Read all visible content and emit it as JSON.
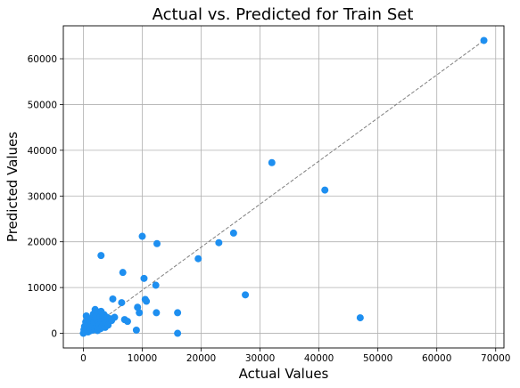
{
  "chart_data": {
    "type": "scatter",
    "title": "Actual vs. Predicted for Train Set",
    "xlabel": "Actual Values",
    "ylabel": "Predicted Values",
    "xlim": [
      -3400,
      71400
    ],
    "ylim": [
      -3200,
      67200
    ],
    "xticks": [
      0,
      10000,
      20000,
      30000,
      40000,
      50000,
      60000,
      70000
    ],
    "yticks": [
      0,
      10000,
      20000,
      30000,
      40000,
      50000,
      60000
    ],
    "grid": true,
    "colors": {
      "points": "#1e8ff0",
      "reference_line": "#808080"
    },
    "reference_line": {
      "style": "dashed",
      "from": [
        0,
        0
      ],
      "to": [
        68000,
        64000
      ]
    },
    "series": [
      {
        "values": [
          [
            0,
            0
          ],
          [
            100,
            800
          ],
          [
            200,
            1500
          ],
          [
            300,
            400
          ],
          [
            400,
            2500
          ],
          [
            500,
            3800
          ],
          [
            600,
            1200
          ],
          [
            700,
            2000
          ],
          [
            800,
            300
          ],
          [
            900,
            3000
          ],
          [
            1000,
            1600
          ],
          [
            1100,
            500
          ],
          [
            1200,
            2600
          ],
          [
            1300,
            900
          ],
          [
            1400,
            3300
          ],
          [
            1500,
            1900
          ],
          [
            1600,
            700
          ],
          [
            1700,
            4200
          ],
          [
            1800,
            2400
          ],
          [
            1900,
            1100
          ],
          [
            2000,
            5200
          ],
          [
            2100,
            3700
          ],
          [
            2200,
            1400
          ],
          [
            2300,
            2900
          ],
          [
            2400,
            600
          ],
          [
            2500,
            4500
          ],
          [
            2600,
            2200
          ],
          [
            2700,
            1800
          ],
          [
            2800,
            3500
          ],
          [
            2900,
            1000
          ],
          [
            3000,
            4800
          ],
          [
            3100,
            2700
          ],
          [
            3200,
            1500
          ],
          [
            3300,
            3900
          ],
          [
            3400,
            2000
          ],
          [
            3500,
            4100
          ],
          [
            3600,
            3000
          ],
          [
            3700,
            1300
          ],
          [
            3800,
            2500
          ],
          [
            4000,
            3500
          ],
          [
            4200,
            1800
          ],
          [
            4500,
            3200
          ],
          [
            4800,
            2800
          ],
          [
            5000,
            7500
          ],
          [
            5300,
            3500
          ],
          [
            6500,
            6700
          ],
          [
            6700,
            13300
          ],
          [
            7000,
            3000
          ],
          [
            7500,
            2600
          ],
          [
            9000,
            700
          ],
          [
            9200,
            5700
          ],
          [
            9500,
            4500
          ],
          [
            10000,
            21200
          ],
          [
            10300,
            12000
          ],
          [
            10500,
            7400
          ],
          [
            10700,
            7000
          ],
          [
            12300,
            10500
          ],
          [
            12400,
            4500
          ],
          [
            12500,
            19600
          ],
          [
            16000,
            4500
          ],
          [
            16000,
            0
          ],
          [
            19500,
            16300
          ],
          [
            23000,
            19800
          ],
          [
            25500,
            21900
          ],
          [
            27500,
            8400
          ],
          [
            32000,
            37300
          ],
          [
            41000,
            31300
          ],
          [
            47000,
            3400
          ],
          [
            68000,
            64000
          ],
          [
            3000,
            17000
          ]
        ]
      }
    ]
  }
}
